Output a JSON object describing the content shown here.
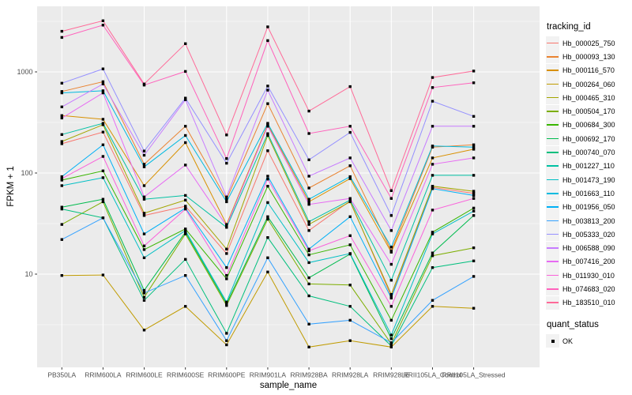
{
  "chart_data": {
    "type": "line",
    "x_axis_title": "sample_name",
    "y_axis_title": "FPKM + 1",
    "y_scale": "log10",
    "y_tick_values": [
      10,
      100,
      1000
    ],
    "y_tick_labels": [
      "10",
      "100",
      "1000"
    ],
    "y_minor_gridline_values": [
      3.162,
      31.62,
      316.2,
      3162
    ],
    "ylim": [
      1.2,
      4450
    ],
    "grid": "on",
    "legend_position": "right",
    "panel_bg": "#EBEBEB",
    "grid_color": "#FFFFFF",
    "tick_label_color": "#4D4D4D",
    "tick_mark_color": "#333333",
    "point_color": "#000000",
    "legend_key_bg": "#F2F2F2",
    "legend_title": "tracking_id",
    "quant_legend_title": "quant_status",
    "quant_items": [
      {
        "label": "OK",
        "shape": "filled-square",
        "color": "#000000"
      }
    ],
    "categories": [
      "PB350LA",
      "RRIM600LA",
      "RRIM600LE",
      "RRIM600SE",
      "RRIM600PE",
      "RRIM901LA",
      "RRIM928BA",
      "RRIM928LA",
      "RRIM928LE",
      "RRII105LA_Control",
      "RRII105LA_Stressed"
    ],
    "series": [
      {
        "name": "Hb_000025_750",
        "color": "#F8766D",
        "values": [
          195,
          254,
          38,
          47,
          16,
          166,
          27,
          53,
          6,
          72,
          63
        ]
      },
      {
        "name": "Hb_000093_130",
        "color": "#EA8331",
        "values": [
          640,
          800,
          122,
          290,
          55,
          485,
          71,
          118,
          17,
          180,
          190
        ]
      },
      {
        "name": "Hb_000116_570",
        "color": "#D89000",
        "values": [
          370,
          340,
          75,
          200,
          31,
          300,
          52,
          88,
          16.5,
          141,
          172
        ]
      },
      {
        "name": "Hb_000264_060",
        "color": "#C09B00",
        "values": [
          9.7,
          9.8,
          2.8,
          4.8,
          2,
          10.5,
          1.9,
          2.2,
          1.9,
          4.8,
          4.6
        ]
      },
      {
        "name": "Hb_000465_310",
        "color": "#A3A500",
        "values": [
          205,
          300,
          40,
          54,
          17.7,
          235,
          31,
          52,
          6.3,
          74,
          66
        ]
      },
      {
        "name": "Hb_000504_170",
        "color": "#7CAE00",
        "values": [
          31,
          52,
          5.9,
          25,
          4.9,
          35,
          8,
          7.8,
          2.05,
          15.2,
          18.2
        ]
      },
      {
        "name": "Hb_000684_300",
        "color": "#39B600",
        "values": [
          85,
          105,
          17.5,
          28,
          9,
          74,
          15.5,
          19.5,
          3.5,
          26,
          45
        ]
      },
      {
        "name": "Hb_000692_170",
        "color": "#00BB4E",
        "values": [
          46,
          55,
          6.9,
          26,
          5.1,
          37,
          9.2,
          15.8,
          2.3,
          16.2,
          38
        ]
      },
      {
        "name": "Hb_000740_070",
        "color": "#00BF7D",
        "values": [
          44,
          36,
          5.5,
          14,
          2.6,
          23,
          6.1,
          4.8,
          1.95,
          11.6,
          13.5
        ]
      },
      {
        "name": "Hb_001227_110",
        "color": "#00C1A3",
        "values": [
          240,
          310,
          55,
          60,
          29,
          245,
          33,
          54,
          8.7,
          95,
          95
        ]
      },
      {
        "name": "Hb_001473_190",
        "color": "#00BFC4",
        "values": [
          75,
          90,
          14.5,
          27,
          5.3,
          51,
          13,
          16,
          2.5,
          25,
          42
        ]
      },
      {
        "name": "Hb_001663_110",
        "color": "#00BAE0",
        "values": [
          620,
          650,
          115,
          235,
          52,
          310,
          55,
          92,
          18.5,
          185,
          180
        ]
      },
      {
        "name": "Hb_001956_050",
        "color": "#00B0F6",
        "values": [
          92,
          190,
          25,
          45,
          11.6,
          93,
          17.7,
          37,
          5.8,
          70,
          60
        ]
      },
      {
        "name": "Hb_003813_200",
        "color": "#35A2FF",
        "values": [
          22,
          36,
          6.5,
          9.7,
          2.2,
          14.5,
          3.2,
          3.5,
          2.1,
          5.5,
          9.5
        ]
      },
      {
        "name": "Hb_005333_020",
        "color": "#9590FF",
        "values": [
          773,
          1070,
          165,
          550,
          125,
          725,
          135,
          252,
          38,
          513,
          363
        ]
      },
      {
        "name": "Hb_006588_090",
        "color": "#C77CFF",
        "values": [
          451,
          760,
          150,
          530,
          58,
          660,
          93,
          141,
          27,
          290,
          290
        ]
      },
      {
        "name": "Hb_007416_200",
        "color": "#E76BF3",
        "values": [
          350,
          620,
          58,
          120,
          30,
          290,
          49,
          56,
          12.5,
          122,
          141
        ]
      },
      {
        "name": "Hb_011930_010",
        "color": "#FA62DB",
        "values": [
          88,
          146,
          19,
          44,
          9.7,
          87,
          17,
          24,
          4.8,
          43,
          56
        ]
      },
      {
        "name": "Hb_074683_020",
        "color": "#FF62BC",
        "values": [
          2190,
          2900,
          740,
          1010,
          139,
          2040,
          246,
          290,
          56,
          700,
          780
        ]
      },
      {
        "name": "Hb_183510_010",
        "color": "#FF6A98",
        "values": [
          2520,
          3200,
          760,
          1900,
          238,
          2790,
          410,
          715,
          67,
          880,
          1020
        ]
      }
    ]
  }
}
